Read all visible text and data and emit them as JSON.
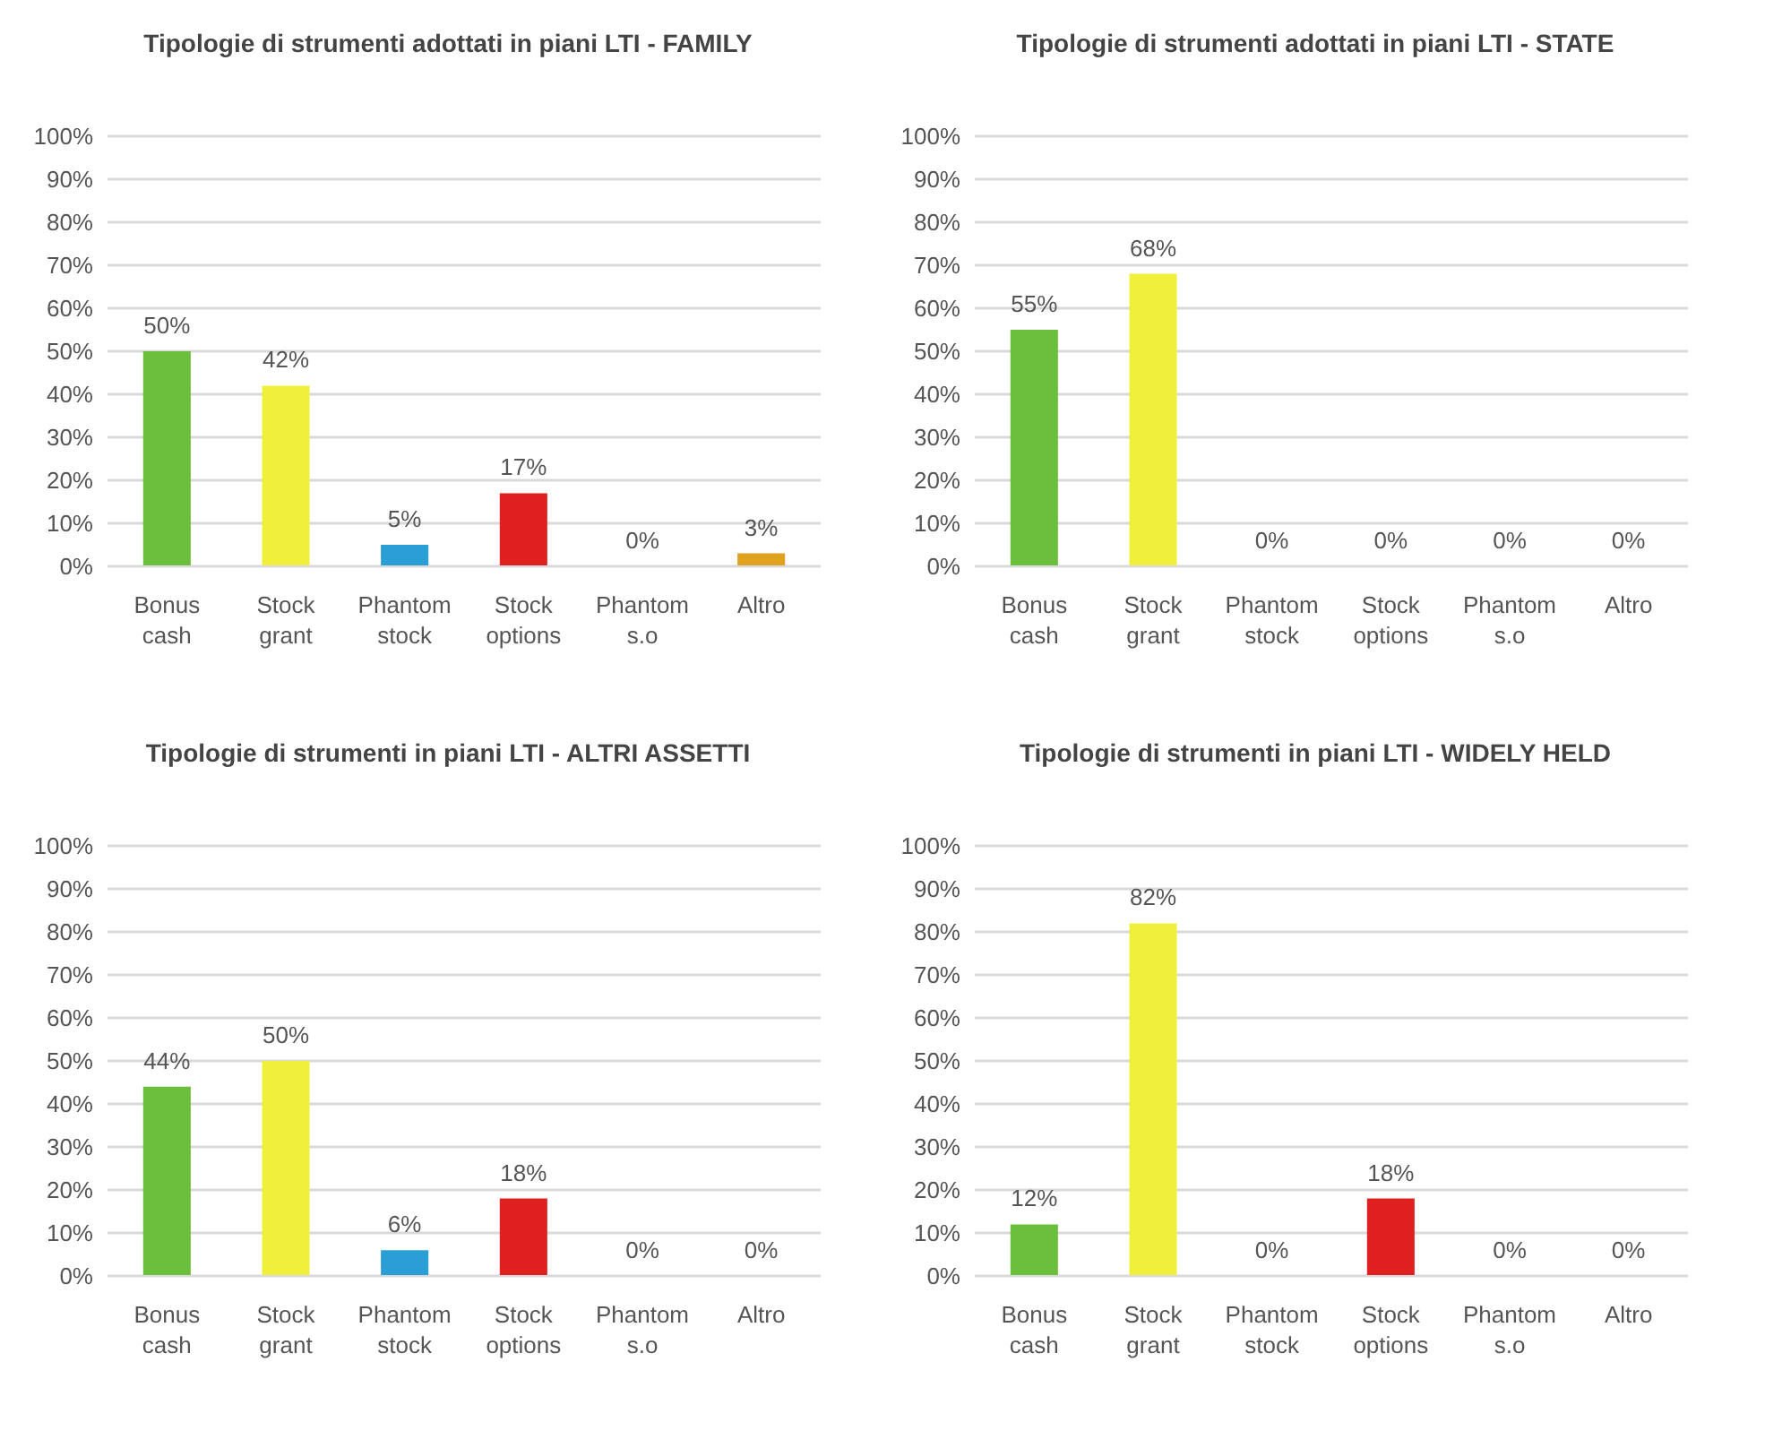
{
  "chart_data": [
    {
      "type": "bar",
      "title": "Tipologie di strumenti adottati in piani LTI - FAMILY",
      "categories": [
        "Bonus cash",
        "Stock grant",
        "Phantom stock",
        "Stock options",
        "Phantom s.o",
        "Altro"
      ],
      "values": [
        50,
        42,
        5,
        17,
        0,
        3
      ],
      "value_labels": [
        "50%",
        "42%",
        "5%",
        "17%",
        "0%",
        "3%"
      ],
      "colors": [
        "#6cbf3c",
        "#f0f03c",
        "#2a9fd6",
        "#e0201e",
        "#3a9a3a",
        "#e0a21e"
      ],
      "ylim": [
        0,
        100
      ],
      "yticks": [
        {
          "value": 0,
          "label": "0%"
        },
        {
          "value": 10,
          "label": "10%"
        },
        {
          "value": 20,
          "label": "20%"
        },
        {
          "value": 30,
          "label": "30%"
        },
        {
          "value": 40,
          "label": "40%"
        },
        {
          "value": 50,
          "label": "50%"
        },
        {
          "value": 60,
          "label": "60%"
        },
        {
          "value": 70,
          "label": "70%"
        },
        {
          "value": 80,
          "label": "80%"
        },
        {
          "value": 90,
          "label": "90%"
        },
        {
          "value": 100,
          "label": "100%"
        }
      ],
      "grid": "y"
    },
    {
      "type": "bar",
      "title": "Tipologie di strumenti adottati in piani LTI - STATE",
      "categories": [
        "Bonus cash",
        "Stock grant",
        "Phantom stock",
        "Stock options",
        "Phantom s.o",
        "Altro"
      ],
      "values": [
        55,
        68,
        0,
        0,
        0,
        0
      ],
      "value_labels": [
        "55%",
        "68%",
        "0%",
        "0%",
        "0%",
        "0%"
      ],
      "colors": [
        "#6cbf3c",
        "#f0f03c",
        "#2a9fd6",
        "#e0201e",
        "#3a9a3a",
        "#e0a21e"
      ],
      "ylim": [
        0,
        100
      ],
      "yticks": [
        {
          "value": 0,
          "label": "0%"
        },
        {
          "value": 10,
          "label": "10%"
        },
        {
          "value": 20,
          "label": "20%"
        },
        {
          "value": 30,
          "label": "30%"
        },
        {
          "value": 40,
          "label": "40%"
        },
        {
          "value": 50,
          "label": "50%"
        },
        {
          "value": 60,
          "label": "60%"
        },
        {
          "value": 70,
          "label": "70%"
        },
        {
          "value": 80,
          "label": "80%"
        },
        {
          "value": 90,
          "label": "90%"
        },
        {
          "value": 100,
          "label": "100%"
        }
      ],
      "grid": "y"
    },
    {
      "type": "bar",
      "title": "Tipologie di strumenti  in piani LTI - ALTRI ASSETTI",
      "categories": [
        "Bonus cash",
        "Stock grant",
        "Phantom stock",
        "Stock options",
        "Phantom s.o",
        "Altro"
      ],
      "values": [
        44,
        50,
        6,
        18,
        0,
        0
      ],
      "value_labels": [
        "44%",
        "50%",
        "6%",
        "18%",
        "0%",
        "0%"
      ],
      "colors": [
        "#6cbf3c",
        "#f0f03c",
        "#2a9fd6",
        "#e0201e",
        "#3a9a3a",
        "#e0a21e"
      ],
      "ylim": [
        0,
        100
      ],
      "yticks": [
        {
          "value": 0,
          "label": "0%"
        },
        {
          "value": 10,
          "label": "10%"
        },
        {
          "value": 20,
          "label": "20%"
        },
        {
          "value": 30,
          "label": "30%"
        },
        {
          "value": 40,
          "label": "40%"
        },
        {
          "value": 50,
          "label": "50%"
        },
        {
          "value": 60,
          "label": "60%"
        },
        {
          "value": 70,
          "label": "70%"
        },
        {
          "value": 80,
          "label": "80%"
        },
        {
          "value": 90,
          "label": "90%"
        },
        {
          "value": 100,
          "label": "100%"
        }
      ],
      "grid": "y"
    },
    {
      "type": "bar",
      "title": "Tipologie di strumenti  in piani LTI - WIDELY HELD",
      "categories": [
        "Bonus cash",
        "Stock grant",
        "Phantom stock",
        "Stock options",
        "Phantom s.o",
        "Altro"
      ],
      "values": [
        12,
        82,
        0,
        18,
        0,
        0
      ],
      "value_labels": [
        "12%",
        "82%",
        "0%",
        "18%",
        "0%",
        "0%"
      ],
      "colors": [
        "#6cbf3c",
        "#f0f03c",
        "#2a9fd6",
        "#e0201e",
        "#3a9a3a",
        "#e0a21e"
      ],
      "ylim": [
        0,
        100
      ],
      "yticks": [
        {
          "value": 0,
          "label": "0%"
        },
        {
          "value": 10,
          "label": "10%"
        },
        {
          "value": 20,
          "label": "20%"
        },
        {
          "value": 30,
          "label": "30%"
        },
        {
          "value": 40,
          "label": "40%"
        },
        {
          "value": 50,
          "label": "50%"
        },
        {
          "value": 60,
          "label": "60%"
        },
        {
          "value": 70,
          "label": "70%"
        },
        {
          "value": 80,
          "label": "80%"
        },
        {
          "value": 90,
          "label": "90%"
        },
        {
          "value": 100,
          "label": "100%"
        }
      ],
      "grid": "y"
    }
  ]
}
